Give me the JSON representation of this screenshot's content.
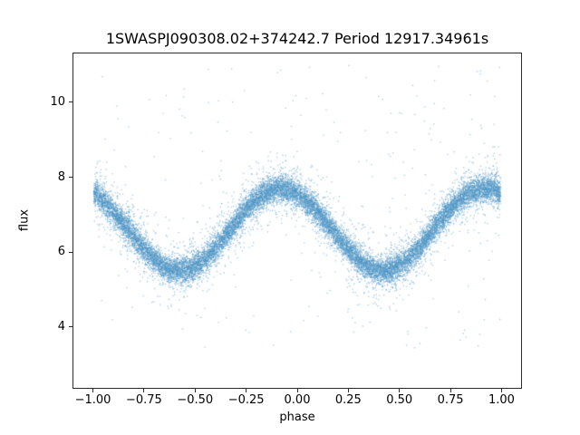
{
  "chart_data": {
    "type": "scatter",
    "title": "1SWASPJ090308.02+374242.7 Period 12917.34961s",
    "xlabel": "phase",
    "ylabel": "flux",
    "xlim": [
      -1.1,
      1.1
    ],
    "ylim": [
      2.35,
      11.33
    ],
    "grid": false,
    "legend": "none",
    "x_ticks": [
      -1.0,
      -0.75,
      -0.5,
      -0.25,
      0.0,
      0.25,
      0.5,
      0.75,
      1.0
    ],
    "x_tick_labels": [
      "−1.00",
      "−0.75",
      "−0.50",
      "−0.25",
      "0.00",
      "0.25",
      "0.50",
      "0.75",
      "1.00"
    ],
    "y_ticks": [
      4,
      6,
      8,
      10
    ],
    "y_tick_labels": [
      "4",
      "6",
      "8",
      "10"
    ],
    "marker_color": "#4e95c6",
    "marker_alpha": 0.5,
    "marker_size_px": 1.3,
    "points": {
      "count": 18000,
      "seed": 42,
      "model": {
        "description": "folded light curve: flux = mean + amplitude*cos(2*pi*(phase - peak_phase)) + noise",
        "mean": 6.6,
        "amplitude": 1.1,
        "peak_phase": -0.08,
        "core_sigma": 0.17,
        "wide_fraction": 0.15,
        "wide_sigma": 0.45,
        "outlier_fraction": 0.015,
        "outlier_range": [
          3.4,
          11.05
        ]
      }
    },
    "mean_curve": {
      "phase": [
        -1.0,
        -0.9,
        -0.8,
        -0.7,
        -0.6,
        -0.5,
        -0.4,
        -0.3,
        -0.2,
        -0.1,
        0.0,
        0.1,
        0.2,
        0.3,
        0.4,
        0.5,
        0.6,
        0.7,
        0.8,
        0.9,
        1.0
      ],
      "flux": [
        7.56,
        7.07,
        6.39,
        5.8,
        5.51,
        5.64,
        6.13,
        6.81,
        7.4,
        7.69,
        7.56,
        7.07,
        6.39,
        5.8,
        5.51,
        5.64,
        6.13,
        6.81,
        7.4,
        7.69,
        7.56
      ],
      "flux_maxima": 7.7,
      "flux_minima": 5.5,
      "maxima_phases": [
        -0.08,
        0.92
      ],
      "minima_phases": [
        -0.58,
        0.42
      ]
    }
  }
}
